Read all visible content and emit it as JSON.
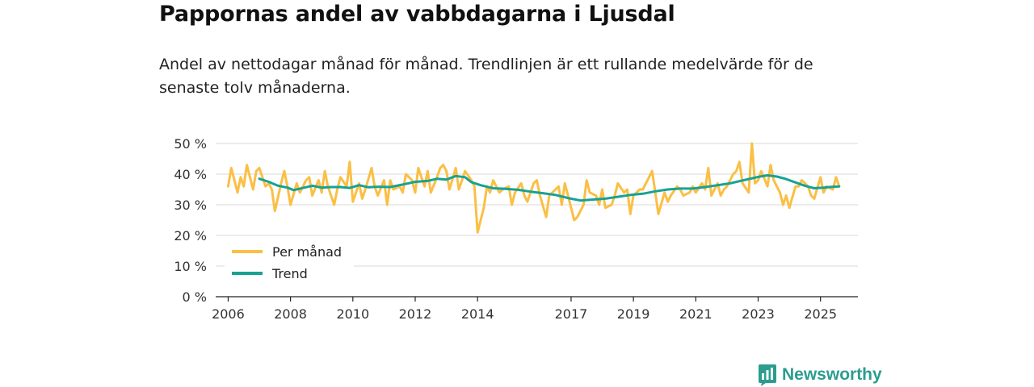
{
  "brand": {
    "name": "Newsworthy",
    "icon": "bar-chart-logo-icon",
    "color": "#2a9d8f"
  },
  "chart_data": {
    "type": "line",
    "title": "Pappornas andel av vabbdagarna i Ljusdal",
    "subtitle": "Andel av nettodagar månad för månad. Trendlinjen är ett rullande medelvärde för de senaste tolv månaderna.",
    "xlabel": "",
    "ylabel": "",
    "xlim": [
      2005.6,
      2026.2
    ],
    "ylim": [
      0,
      50
    ],
    "y_ticks": [
      0,
      10,
      20,
      30,
      40,
      50
    ],
    "y_tick_labels": [
      "0 %",
      "10 %",
      "20 %",
      "30 %",
      "40 %",
      "50 %"
    ],
    "x_ticks": [
      2006,
      2008,
      2010,
      2012,
      2014,
      2017,
      2019,
      2021,
      2023,
      2025
    ],
    "x_tick_labels": [
      "2006",
      "2008",
      "2010",
      "2012",
      "2014",
      "2017",
      "2019",
      "2021",
      "2023",
      "2025"
    ],
    "grid": true,
    "legend_position": "bottom-left",
    "series": [
      {
        "name": "Per månad",
        "color": "#fbbf45",
        "points": [
          [
            2006.0,
            36
          ],
          [
            2006.1,
            42
          ],
          [
            2006.3,
            34
          ],
          [
            2006.4,
            39
          ],
          [
            2006.5,
            36
          ],
          [
            2006.6,
            43
          ],
          [
            2006.8,
            35
          ],
          [
            2006.9,
            41
          ],
          [
            2007.0,
            42
          ],
          [
            2007.2,
            36
          ],
          [
            2007.3,
            37
          ],
          [
            2007.4,
            35
          ],
          [
            2007.5,
            28
          ],
          [
            2007.7,
            37
          ],
          [
            2007.8,
            41
          ],
          [
            2007.9,
            36
          ],
          [
            2008.0,
            30
          ],
          [
            2008.2,
            37
          ],
          [
            2008.3,
            34
          ],
          [
            2008.5,
            38
          ],
          [
            2008.6,
            39
          ],
          [
            2008.7,
            33
          ],
          [
            2008.9,
            38
          ],
          [
            2009.0,
            34
          ],
          [
            2009.1,
            41
          ],
          [
            2009.2,
            36
          ],
          [
            2009.4,
            30
          ],
          [
            2009.5,
            35
          ],
          [
            2009.6,
            39
          ],
          [
            2009.8,
            36
          ],
          [
            2009.9,
            44
          ],
          [
            2010.0,
            31
          ],
          [
            2010.2,
            37
          ],
          [
            2010.3,
            32
          ],
          [
            2010.4,
            35
          ],
          [
            2010.6,
            42
          ],
          [
            2010.7,
            36
          ],
          [
            2010.8,
            33
          ],
          [
            2011.0,
            38
          ],
          [
            2011.1,
            30
          ],
          [
            2011.2,
            38
          ],
          [
            2011.3,
            35
          ],
          [
            2011.5,
            36
          ],
          [
            2011.6,
            34
          ],
          [
            2011.7,
            40
          ],
          [
            2011.9,
            38
          ],
          [
            2012.0,
            34
          ],
          [
            2012.1,
            42
          ],
          [
            2012.3,
            36
          ],
          [
            2012.4,
            41
          ],
          [
            2012.5,
            34
          ],
          [
            2012.7,
            39
          ],
          [
            2012.8,
            42
          ],
          [
            2012.9,
            43
          ],
          [
            2013.0,
            41
          ],
          [
            2013.1,
            35
          ],
          [
            2013.3,
            42
          ],
          [
            2013.4,
            35
          ],
          [
            2013.5,
            38
          ],
          [
            2013.6,
            41
          ],
          [
            2013.8,
            38
          ],
          [
            2013.9,
            36
          ],
          [
            2014.0,
            21
          ],
          [
            2014.2,
            29
          ],
          [
            2014.3,
            36
          ],
          [
            2014.4,
            34
          ],
          [
            2014.5,
            38
          ],
          [
            2014.7,
            34
          ],
          [
            2014.8,
            35
          ],
          [
            2015.0,
            36
          ],
          [
            2015.1,
            30
          ],
          [
            2015.2,
            34
          ],
          [
            2015.4,
            37
          ],
          [
            2015.5,
            33
          ],
          [
            2015.6,
            31
          ],
          [
            2015.8,
            37
          ],
          [
            2015.9,
            38
          ],
          [
            2016.0,
            33
          ],
          [
            2016.2,
            26
          ],
          [
            2016.3,
            33
          ],
          [
            2016.4,
            34
          ],
          [
            2016.6,
            36
          ],
          [
            2016.7,
            30
          ],
          [
            2016.8,
            37
          ],
          [
            2017.0,
            29
          ],
          [
            2017.1,
            25
          ],
          [
            2017.2,
            26
          ],
          [
            2017.4,
            30
          ],
          [
            2017.5,
            38
          ],
          [
            2017.6,
            34
          ],
          [
            2017.8,
            33
          ],
          [
            2017.9,
            30
          ],
          [
            2018.0,
            35
          ],
          [
            2018.1,
            29
          ],
          [
            2018.3,
            30
          ],
          [
            2018.4,
            33
          ],
          [
            2018.5,
            37
          ],
          [
            2018.7,
            34
          ],
          [
            2018.8,
            35
          ],
          [
            2018.9,
            27
          ],
          [
            2019.0,
            33
          ],
          [
            2019.2,
            35
          ],
          [
            2019.3,
            35
          ],
          [
            2019.4,
            37
          ],
          [
            2019.6,
            41
          ],
          [
            2019.7,
            34
          ],
          [
            2019.8,
            27
          ],
          [
            2020.0,
            34
          ],
          [
            2020.1,
            31
          ],
          [
            2020.2,
            33
          ],
          [
            2020.4,
            36
          ],
          [
            2020.5,
            35
          ],
          [
            2020.6,
            33
          ],
          [
            2020.8,
            34
          ],
          [
            2020.9,
            36
          ],
          [
            2021.0,
            34
          ],
          [
            2021.2,
            37
          ],
          [
            2021.3,
            35
          ],
          [
            2021.4,
            42
          ],
          [
            2021.5,
            33
          ],
          [
            2021.7,
            37
          ],
          [
            2021.8,
            33
          ],
          [
            2021.9,
            35
          ],
          [
            2022.0,
            36
          ],
          [
            2022.2,
            40
          ],
          [
            2022.3,
            41
          ],
          [
            2022.4,
            44
          ],
          [
            2022.5,
            37
          ],
          [
            2022.7,
            34
          ],
          [
            2022.8,
            50
          ],
          [
            2022.9,
            37
          ],
          [
            2023.0,
            38
          ],
          [
            2023.1,
            41
          ],
          [
            2023.3,
            36
          ],
          [
            2023.4,
            43
          ],
          [
            2023.5,
            38
          ],
          [
            2023.7,
            34
          ],
          [
            2023.8,
            30
          ],
          [
            2023.9,
            33
          ],
          [
            2024.0,
            29
          ],
          [
            2024.2,
            36
          ],
          [
            2024.3,
            36
          ],
          [
            2024.4,
            38
          ],
          [
            2024.6,
            36
          ],
          [
            2024.7,
            33
          ],
          [
            2024.8,
            32
          ],
          [
            2025.0,
            39
          ],
          [
            2025.1,
            34
          ],
          [
            2025.2,
            36
          ],
          [
            2025.4,
            35
          ],
          [
            2025.5,
            39
          ],
          [
            2025.6,
            36
          ]
        ]
      },
      {
        "name": "Trend",
        "color": "#17a293",
        "points": [
          [
            2007.0,
            38.5
          ],
          [
            2007.3,
            37.5
          ],
          [
            2007.6,
            36.2
          ],
          [
            2007.9,
            35.6
          ],
          [
            2008.1,
            34.8
          ],
          [
            2008.4,
            35.5
          ],
          [
            2008.7,
            36.2
          ],
          [
            2009.0,
            35.6
          ],
          [
            2009.3,
            35.8
          ],
          [
            2009.6,
            35.8
          ],
          [
            2009.9,
            35.5
          ],
          [
            2010.2,
            36.4
          ],
          [
            2010.5,
            35.7
          ],
          [
            2010.8,
            35.9
          ],
          [
            2011.2,
            35.8
          ],
          [
            2011.6,
            36.6
          ],
          [
            2012.0,
            37.5
          ],
          [
            2012.4,
            37.8
          ],
          [
            2012.7,
            38.5
          ],
          [
            2013.0,
            38.2
          ],
          [
            2013.3,
            39.4
          ],
          [
            2013.6,
            39.0
          ],
          [
            2013.8,
            37.4
          ],
          [
            2014.1,
            36.4
          ],
          [
            2014.5,
            35.4
          ],
          [
            2014.9,
            35.2
          ],
          [
            2015.3,
            34.9
          ],
          [
            2015.7,
            34.3
          ],
          [
            2016.1,
            33.8
          ],
          [
            2016.5,
            33.2
          ],
          [
            2016.9,
            32.2
          ],
          [
            2017.3,
            31.4
          ],
          [
            2017.7,
            31.7
          ],
          [
            2018.1,
            32.0
          ],
          [
            2018.5,
            32.6
          ],
          [
            2018.9,
            33.2
          ],
          [
            2019.3,
            33.6
          ],
          [
            2019.7,
            34.4
          ],
          [
            2020.1,
            35.0
          ],
          [
            2020.5,
            35.3
          ],
          [
            2020.9,
            35.3
          ],
          [
            2021.3,
            35.8
          ],
          [
            2021.7,
            36.4
          ],
          [
            2022.1,
            37.0
          ],
          [
            2022.4,
            37.7
          ],
          [
            2022.7,
            38.4
          ],
          [
            2023.0,
            39.1
          ],
          [
            2023.3,
            39.6
          ],
          [
            2023.6,
            39.2
          ],
          [
            2023.9,
            38.4
          ],
          [
            2024.2,
            37.3
          ],
          [
            2024.5,
            36.2
          ],
          [
            2024.8,
            35.4
          ],
          [
            2025.1,
            35.6
          ],
          [
            2025.4,
            35.9
          ],
          [
            2025.6,
            36.0
          ]
        ]
      }
    ]
  }
}
